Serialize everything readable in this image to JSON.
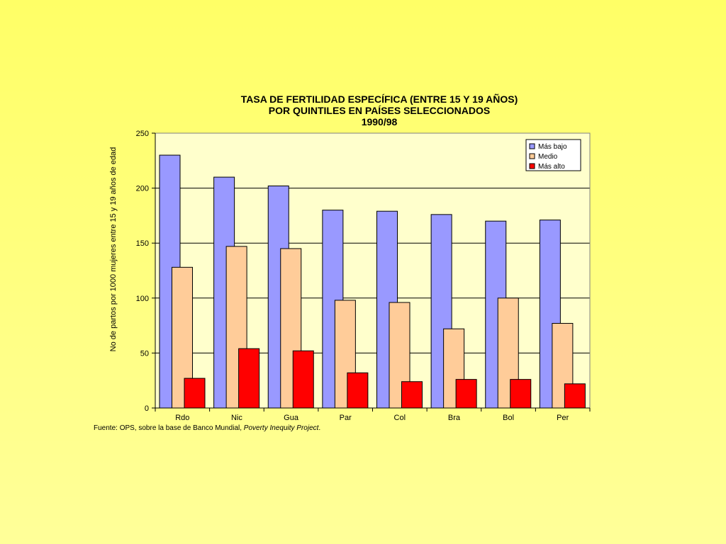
{
  "chart_data": {
    "type": "bar",
    "title_lines": [
      "TASA DE FERTILIDAD ESPECÍFICA (ENTRE 15 Y 19 AÑOS)",
      "POR QUINTILES EN PAÍSES SELECCIONADOS",
      "1990/98"
    ],
    "ylabel": "No de partos por 1000 mujeres entre 15 y 19 años de edad",
    "xlabel": "",
    "ylim": [
      0,
      250
    ],
    "yticks": [
      0,
      50,
      100,
      150,
      200,
      250
    ],
    "grid": true,
    "legend_position": "top-right",
    "categories": [
      "Rdo",
      "Nic",
      "Gua",
      "Par",
      "Col",
      "Bra",
      "Bol",
      "Per"
    ],
    "series": [
      {
        "name": "Más bajo",
        "color": "#9999ff",
        "values": [
          230,
          210,
          202,
          180,
          179,
          176,
          170,
          171
        ]
      },
      {
        "name": "Medio",
        "color": "#ffcc99",
        "values": [
          128,
          147,
          145,
          98,
          96,
          72,
          100,
          77
        ]
      },
      {
        "name": "Más alto",
        "color": "#ff0000",
        "values": [
          27,
          54,
          52,
          32,
          24,
          26,
          26,
          22
        ]
      }
    ],
    "plot_background": "#ffffcc"
  },
  "source": {
    "prefix": "Fuente: OPS, sobre la base de Banco Mundial, ",
    "italic": "Poverty Inequity Project",
    "suffix": "."
  }
}
